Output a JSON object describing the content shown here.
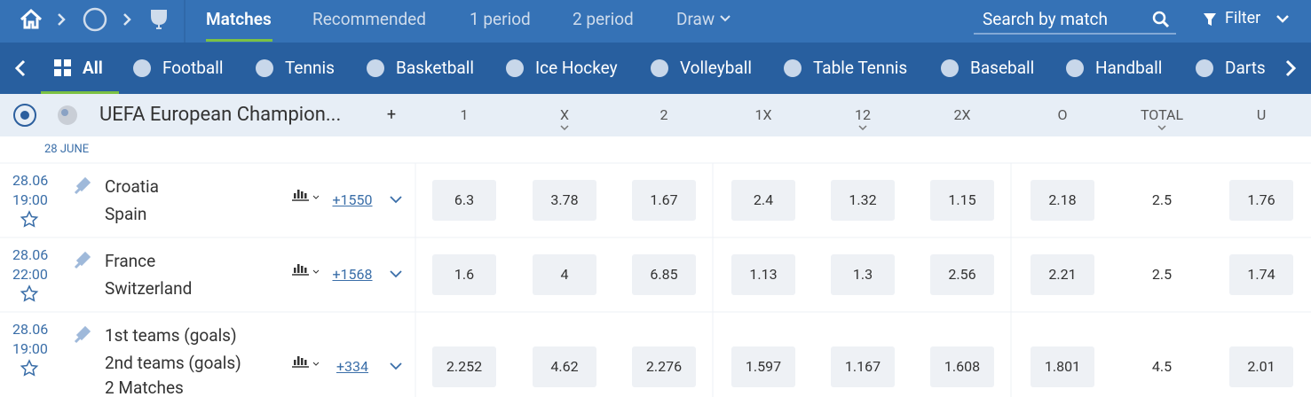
{
  "nav": {
    "tabs": [
      "Matches",
      "Recommended",
      "1 period",
      "2 period",
      "Draw"
    ],
    "search": "Search by match",
    "filter": "Filter"
  },
  "sports": [
    "All",
    "Football",
    "Tennis",
    "Basketball",
    "Ice Hockey",
    "Volleyball",
    "Table Tennis",
    "Baseball",
    "Handball",
    "Darts"
  ],
  "league": {
    "name": "UEFA European Champion...",
    "plus": "+",
    "columns": [
      "1",
      "X",
      "2",
      "1X",
      "12",
      "2X",
      "O",
      "TOTAL",
      "U"
    ]
  },
  "date_header": "28 JUNE",
  "matches": [
    {
      "date": "28.06",
      "time": "19:00",
      "teams": [
        "Croatia",
        "Spain"
      ],
      "markets": "+1550",
      "odds": [
        6.3,
        3.78,
        1.67,
        2.4,
        1.32,
        1.15,
        2.18,
        2.5,
        1.76
      ]
    },
    {
      "date": "28.06",
      "time": "22:00",
      "teams": [
        "France",
        "Switzerland"
      ],
      "markets": "+1568",
      "odds": [
        1.6,
        4,
        6.85,
        1.13,
        1.3,
        2.56,
        2.21,
        2.5,
        1.74
      ]
    },
    {
      "date": "28.06",
      "time": "19:00",
      "teams": [
        "1st teams (goals)",
        "2nd teams (goals)",
        "2 Matches"
      ],
      "markets": "+334",
      "odds": [
        2.252,
        4.62,
        2.276,
        1.597,
        1.167,
        1.608,
        1.801,
        4.5,
        2.01
      ]
    }
  ]
}
